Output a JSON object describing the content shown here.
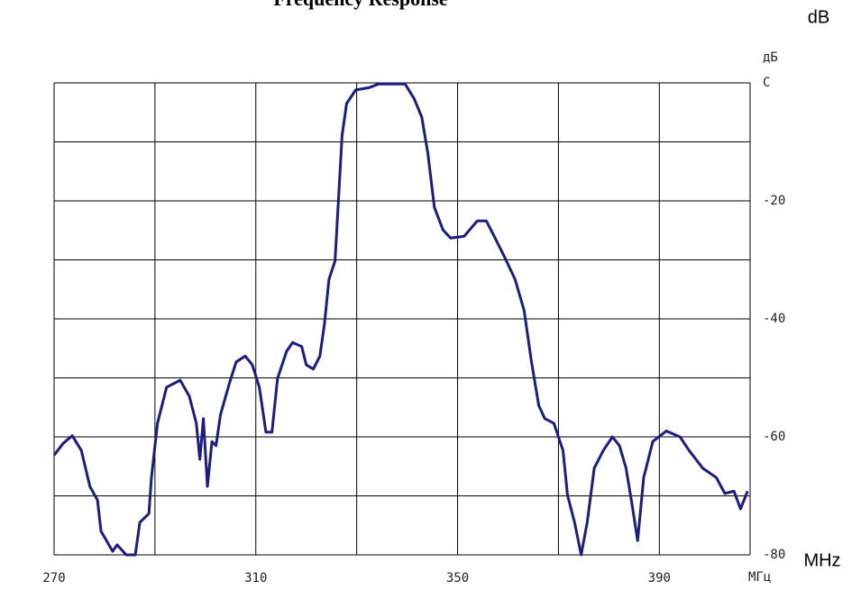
{
  "chart_data": {
    "type": "line",
    "title": "Frequency Response",
    "y_unit_label": "dB",
    "x_unit_label": "MHz",
    "y_axis_label": "дБ",
    "x_axis_label": "МГц",
    "xlim": [
      270,
      408
    ],
    "ylim": [
      -80,
      0
    ],
    "xticks": [
      270,
      310,
      350,
      390
    ],
    "yticks": [
      {
        "value": 0,
        "label": "C"
      },
      -20,
      -40,
      -60,
      -80
    ],
    "xgrid": [
      270,
      290,
      310,
      330,
      350,
      370,
      390
    ],
    "ygrid": [
      0,
      -10,
      -20,
      -30,
      -40,
      -50,
      -60,
      -70,
      -80
    ],
    "grid": true,
    "x": [
      270,
      271.8,
      273.6,
      275.4,
      277.1,
      278.6,
      279.3,
      280.4,
      281.6,
      282.5,
      284.3,
      286.1,
      287,
      288.8,
      289.3,
      290.5,
      292.3,
      295,
      296.8,
      298.2,
      298.9,
      299.6,
      300.4,
      301.3,
      302.1,
      303,
      304.8,
      306.1,
      307.9,
      309.3,
      310.7,
      312,
      313.2,
      314.3,
      316.1,
      317.3,
      319.1,
      320,
      321.4,
      322.7,
      323.6,
      324.5,
      325.7,
      326.3,
      327.1,
      328,
      329.8,
      332.5,
      334.3,
      339.6,
      341.4,
      342.9,
      344.1,
      345.4,
      347.1,
      348.6,
      351.3,
      353.9,
      355.7,
      357.5,
      359.3,
      361.4,
      363.2,
      364.6,
      366.1,
      367.3,
      369.1,
      370.9,
      371.8,
      373.2,
      374.5,
      375.7,
      377.1,
      378.9,
      380.7,
      382.1,
      383.4,
      384.6,
      385.7,
      386.9,
      388.7,
      391.4,
      394.1,
      395.9,
      398.6,
      401.3,
      403,
      404.8,
      406.1,
      407.5
    ],
    "series": [
      {
        "color": "#1c1c86",
        "values": [
          -63.1,
          -61.1,
          -59.8,
          -62.3,
          -68.4,
          -70.7,
          -76,
          -77.6,
          -79.4,
          -78.3,
          -80,
          -80,
          -74.5,
          -73,
          -66.9,
          -57.7,
          -51.6,
          -50.4,
          -53.1,
          -57.7,
          -63.8,
          -56.9,
          -68.4,
          -60.8,
          -61.5,
          -56.2,
          -50.8,
          -47.3,
          -46.3,
          -47.8,
          -51.6,
          -59.2,
          -59.2,
          -50.1,
          -45.5,
          -44,
          -44.7,
          -47.8,
          -48.5,
          -46.3,
          -40.9,
          -33.3,
          -30.2,
          -21.1,
          -8.9,
          -3.5,
          -1.2,
          -0.8,
          -0.2,
          -0.2,
          -2.7,
          -5.8,
          -11.9,
          -21.1,
          -24.9,
          -26.3,
          -26,
          -23.4,
          -23.4,
          -26.4,
          -29.5,
          -33.3,
          -38.6,
          -47,
          -54.7,
          -56.9,
          -57.7,
          -62.3,
          -69.9,
          -74.5,
          -80,
          -74.5,
          -65.3,
          -62.3,
          -60,
          -61.5,
          -65.3,
          -71.5,
          -77.6,
          -66.9,
          -60.8,
          -59,
          -60,
          -62.3,
          -65.3,
          -66.9,
          -69.6,
          -69.2,
          -72.2,
          -69.2
        ]
      }
    ]
  }
}
